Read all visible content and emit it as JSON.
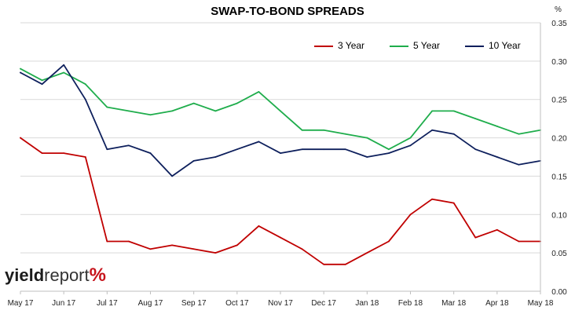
{
  "header": {
    "title": "SWAP-TO-BOND SPREADS",
    "unit": "%"
  },
  "logo": {
    "word1": "yield",
    "word2": "report",
    "symbol": "%"
  },
  "colors": {
    "series_3y": "#c00000",
    "series_5y": "#1fad4c",
    "series_10y": "#0d1f5c",
    "gridline": "#d9d9d9",
    "axis": "#bfbfbf"
  },
  "chart_data": {
    "type": "line",
    "title": "SWAP-TO-BOND SPREADS",
    "xlabel": "",
    "ylabel": "%",
    "ylim": [
      0.0,
      0.35
    ],
    "yticks": [
      "0.00",
      "0.05",
      "0.10",
      "0.15",
      "0.20",
      "0.25",
      "0.30",
      "0.35"
    ],
    "y_axis_side": "right",
    "xticks": [
      "May 17",
      "Jun 17",
      "Jul 17",
      "Aug 17",
      "Sep 17",
      "Oct 17",
      "Nov 17",
      "Dec 17",
      "Jan 18",
      "Feb 18",
      "Mar 18",
      "Apr 18",
      "May 18"
    ],
    "grid": true,
    "legend_position": "top-right",
    "x": [
      "May 17",
      "mid-May 17",
      "Jun 17",
      "mid-Jun 17",
      "Jul 17",
      "mid-Jul 17",
      "Aug 17",
      "mid-Aug 17",
      "Sep 17",
      "mid-Sep 17",
      "Oct 17",
      "mid-Oct 17",
      "Nov 17",
      "mid-Nov 17",
      "Dec 17",
      "mid-Dec 17",
      "Jan 18",
      "mid-Jan 18",
      "Feb 18",
      "mid-Feb 18",
      "Mar 18",
      "mid-Mar 18",
      "Apr 18",
      "mid-Apr 18",
      "May 18"
    ],
    "series": [
      {
        "name": "3 Year",
        "color": "#c00000",
        "values": [
          0.2,
          0.18,
          0.18,
          0.175,
          0.065,
          0.065,
          0.055,
          0.06,
          0.055,
          0.05,
          0.06,
          0.085,
          0.07,
          0.055,
          0.035,
          0.035,
          0.05,
          0.065,
          0.1,
          0.12,
          0.115,
          0.07,
          0.08,
          0.065,
          0.065
        ]
      },
      {
        "name": "5 Year",
        "color": "#1fad4c",
        "values": [
          0.29,
          0.275,
          0.285,
          0.27,
          0.24,
          0.235,
          0.23,
          0.235,
          0.245,
          0.235,
          0.245,
          0.26,
          0.235,
          0.21,
          0.21,
          0.205,
          0.2,
          0.185,
          0.2,
          0.235,
          0.235,
          0.225,
          0.215,
          0.205,
          0.21
        ]
      },
      {
        "name": "10 Year",
        "color": "#0d1f5c",
        "values": [
          0.285,
          0.27,
          0.295,
          0.25,
          0.185,
          0.19,
          0.18,
          0.15,
          0.17,
          0.175,
          0.185,
          0.195,
          0.18,
          0.185,
          0.185,
          0.185,
          0.175,
          0.18,
          0.19,
          0.21,
          0.205,
          0.185,
          0.175,
          0.165,
          0.17
        ]
      }
    ]
  }
}
